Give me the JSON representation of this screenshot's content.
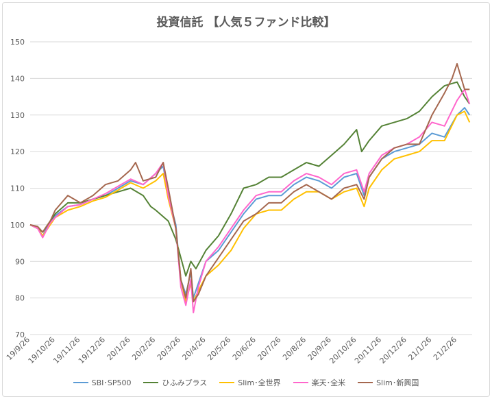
{
  "chart_data": {
    "type": "line",
    "title": "投資信託 【人気５ファンド比較】",
    "ylim": [
      70,
      150
    ],
    "yticks": [
      70,
      80,
      90,
      100,
      110,
      120,
      130,
      140,
      150
    ],
    "xticks": [
      "19/9/26",
      "19/10/26",
      "19/11/26",
      "19/12/26",
      "20/1/26",
      "20/2/26",
      "20/3/26",
      "20/4/26",
      "20/5/26",
      "20/6/26",
      "20/7/26",
      "20/8/26",
      "20/9/26",
      "20/10/26",
      "20/11/26",
      "20/12/26",
      "21/1/26",
      "21/2/26"
    ],
    "grid": true,
    "legend": "bottom",
    "series": [
      {
        "name": "SBI･SP500",
        "color": "#5b9bd5",
        "points": [
          [
            0,
            100
          ],
          [
            0.3,
            99
          ],
          [
            0.5,
            97
          ],
          [
            0.8,
            101
          ],
          [
            1,
            102.5
          ],
          [
            1.5,
            105
          ],
          [
            2,
            105.5
          ],
          [
            2.5,
            107
          ],
          [
            3,
            108
          ],
          [
            3.5,
            110
          ],
          [
            4,
            112
          ],
          [
            4.5,
            111
          ],
          [
            5,
            114
          ],
          [
            5.3,
            116
          ],
          [
            5.5,
            108
          ],
          [
            5.8,
            100
          ],
          [
            6,
            85
          ],
          [
            6.2,
            81
          ],
          [
            6.4,
            87
          ],
          [
            6.5,
            80
          ],
          [
            6.7,
            84
          ],
          [
            7,
            90
          ],
          [
            7.5,
            93
          ],
          [
            8,
            98
          ],
          [
            8.5,
            103
          ],
          [
            9,
            107
          ],
          [
            9.5,
            108
          ],
          [
            10,
            108
          ],
          [
            10.5,
            111
          ],
          [
            11,
            113
          ],
          [
            11.5,
            112
          ],
          [
            12,
            110
          ],
          [
            12.5,
            113
          ],
          [
            13,
            114
          ],
          [
            13.3,
            108
          ],
          [
            13.5,
            113
          ],
          [
            14,
            118
          ],
          [
            14.5,
            120
          ],
          [
            15,
            121
          ],
          [
            15.5,
            122
          ],
          [
            16,
            125
          ],
          [
            16.5,
            124
          ],
          [
            17,
            130
          ],
          [
            17.3,
            132
          ],
          [
            17.5,
            130
          ]
        ]
      },
      {
        "name": "ひふみプラス",
        "color": "#548235",
        "points": [
          [
            0,
            100
          ],
          [
            0.3,
            99
          ],
          [
            0.5,
            98
          ],
          [
            0.8,
            101
          ],
          [
            1,
            103
          ],
          [
            1.5,
            106
          ],
          [
            2,
            106
          ],
          [
            2.5,
            107
          ],
          [
            3,
            108
          ],
          [
            3.5,
            109
          ],
          [
            4,
            110
          ],
          [
            4.5,
            108
          ],
          [
            4.8,
            105
          ],
          [
            5,
            104
          ],
          [
            5.5,
            101
          ],
          [
            5.8,
            96
          ],
          [
            6,
            91
          ],
          [
            6.2,
            86
          ],
          [
            6.4,
            90
          ],
          [
            6.6,
            88
          ],
          [
            7,
            93
          ],
          [
            7.5,
            97
          ],
          [
            8,
            103
          ],
          [
            8.5,
            110
          ],
          [
            9,
            111
          ],
          [
            9.5,
            113
          ],
          [
            10,
            113
          ],
          [
            10.5,
            115
          ],
          [
            11,
            117
          ],
          [
            11.5,
            116
          ],
          [
            12,
            119
          ],
          [
            12.5,
            122
          ],
          [
            13,
            126
          ],
          [
            13.2,
            120
          ],
          [
            13.5,
            123
          ],
          [
            14,
            127
          ],
          [
            14.5,
            128
          ],
          [
            15,
            129
          ],
          [
            15.5,
            131
          ],
          [
            16,
            135
          ],
          [
            16.5,
            138
          ],
          [
            17,
            139
          ],
          [
            17.3,
            135
          ],
          [
            17.5,
            133
          ]
        ]
      },
      {
        "name": "Slim･全世界",
        "color": "#ffc000",
        "points": [
          [
            0,
            100
          ],
          [
            0.3,
            99
          ],
          [
            0.5,
            97
          ],
          [
            0.8,
            100
          ],
          [
            1,
            102
          ],
          [
            1.5,
            104
          ],
          [
            2,
            105
          ],
          [
            2.5,
            106.5
          ],
          [
            3,
            107.5
          ],
          [
            3.5,
            109.5
          ],
          [
            4,
            111.5
          ],
          [
            4.5,
            110
          ],
          [
            5,
            112
          ],
          [
            5.3,
            114
          ],
          [
            5.5,
            107
          ],
          [
            5.8,
            99
          ],
          [
            6,
            85
          ],
          [
            6.2,
            79
          ],
          [
            6.4,
            84
          ],
          [
            6.5,
            79
          ],
          [
            6.7,
            82
          ],
          [
            7,
            86
          ],
          [
            7.5,
            89
          ],
          [
            8,
            93
          ],
          [
            8.5,
            99
          ],
          [
            9,
            103
          ],
          [
            9.5,
            104
          ],
          [
            10,
            104
          ],
          [
            10.5,
            107
          ],
          [
            11,
            109
          ],
          [
            11.5,
            109
          ],
          [
            12,
            107
          ],
          [
            12.5,
            109
          ],
          [
            13,
            110
          ],
          [
            13.3,
            105
          ],
          [
            13.5,
            110
          ],
          [
            14,
            115
          ],
          [
            14.5,
            118
          ],
          [
            15,
            119
          ],
          [
            15.5,
            120
          ],
          [
            16,
            123
          ],
          [
            16.5,
            123
          ],
          [
            17,
            130
          ],
          [
            17.3,
            131
          ],
          [
            17.5,
            128
          ]
        ]
      },
      {
        "name": "楽天･全米",
        "color": "#ff66cc",
        "points": [
          [
            0,
            100
          ],
          [
            0.3,
            99
          ],
          [
            0.5,
            96.5
          ],
          [
            0.8,
            100.5
          ],
          [
            1,
            102
          ],
          [
            1.5,
            105
          ],
          [
            2,
            105.5
          ],
          [
            2.5,
            107
          ],
          [
            3,
            108.5
          ],
          [
            3.5,
            110.5
          ],
          [
            4,
            112.5
          ],
          [
            4.5,
            111
          ],
          [
            5,
            114
          ],
          [
            5.3,
            117
          ],
          [
            5.5,
            108
          ],
          [
            5.8,
            99
          ],
          [
            6,
            83
          ],
          [
            6.2,
            78
          ],
          [
            6.4,
            85
          ],
          [
            6.5,
            76
          ],
          [
            6.7,
            83
          ],
          [
            7,
            90
          ],
          [
            7.5,
            94
          ],
          [
            8,
            99
          ],
          [
            8.5,
            104
          ],
          [
            9,
            108
          ],
          [
            9.5,
            109
          ],
          [
            10,
            109
          ],
          [
            10.5,
            112
          ],
          [
            11,
            114
          ],
          [
            11.5,
            113
          ],
          [
            12,
            111
          ],
          [
            12.5,
            114
          ],
          [
            13,
            115
          ],
          [
            13.3,
            109
          ],
          [
            13.5,
            114
          ],
          [
            14,
            119
          ],
          [
            14.5,
            121
          ],
          [
            15,
            122
          ],
          [
            15.5,
            124
          ],
          [
            16,
            128
          ],
          [
            16.5,
            127
          ],
          [
            17,
            134
          ],
          [
            17.3,
            137
          ],
          [
            17.5,
            133
          ]
        ]
      },
      {
        "name": "Slim･新興国",
        "color": "#a5674e",
        "points": [
          [
            0,
            100
          ],
          [
            0.3,
            99.5
          ],
          [
            0.5,
            98
          ],
          [
            0.8,
            101
          ],
          [
            1,
            104
          ],
          [
            1.5,
            108
          ],
          [
            2,
            106
          ],
          [
            2.5,
            108
          ],
          [
            3,
            111
          ],
          [
            3.5,
            112
          ],
          [
            4,
            115
          ],
          [
            4.2,
            117
          ],
          [
            4.5,
            112
          ],
          [
            5,
            113
          ],
          [
            5.3,
            117
          ],
          [
            5.5,
            110
          ],
          [
            5.8,
            99
          ],
          [
            6,
            85
          ],
          [
            6.2,
            80
          ],
          [
            6.4,
            88
          ],
          [
            6.5,
            79
          ],
          [
            6.7,
            81
          ],
          [
            7,
            86
          ],
          [
            7.5,
            91
          ],
          [
            8,
            96
          ],
          [
            8.5,
            101
          ],
          [
            9,
            103
          ],
          [
            9.5,
            106
          ],
          [
            10,
            106
          ],
          [
            10.5,
            109
          ],
          [
            11,
            111
          ],
          [
            11.5,
            109
          ],
          [
            12,
            107
          ],
          [
            12.5,
            110
          ],
          [
            13,
            111
          ],
          [
            13.3,
            107
          ],
          [
            13.5,
            113
          ],
          [
            14,
            118
          ],
          [
            14.5,
            121
          ],
          [
            15,
            122
          ],
          [
            15.5,
            122
          ],
          [
            16,
            130
          ],
          [
            16.5,
            136
          ],
          [
            16.8,
            140
          ],
          [
            17,
            144
          ],
          [
            17.3,
            137
          ],
          [
            17.5,
            137
          ]
        ]
      }
    ]
  }
}
